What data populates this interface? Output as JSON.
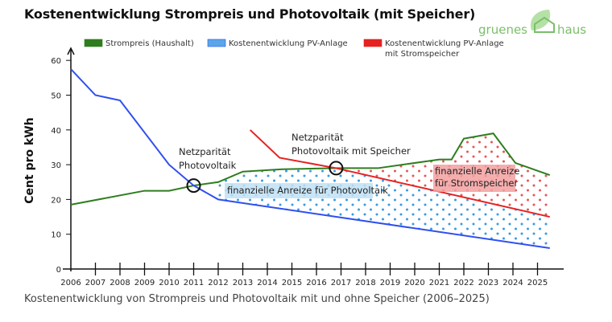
{
  "chart_data": {
    "type": "line",
    "title": "Kostenentwicklung Strompreis und Photovoltaik (mit Speicher)",
    "caption": "Kostenentwicklung von Strompreis und Photovoltaik mit und ohne Speicher (2006–2025)",
    "ylabel": "Cent pro kWh",
    "xlabel": "",
    "ylim": [
      0,
      60
    ],
    "yticks": [
      0,
      10,
      20,
      30,
      40,
      50,
      60
    ],
    "xticks": [
      2006,
      2007,
      2008,
      2009,
      2010,
      2011,
      2012,
      2013,
      2014,
      2015,
      2016,
      2017,
      2018,
      2019,
      2020,
      2021,
      2022,
      2023,
      2024,
      2025
    ],
    "legend_position": "top",
    "grid": false,
    "series": [
      {
        "name": "Strompreis (Haushalt)",
        "color": "#2e7d1e",
        "x": [
          2006,
          2009,
          2010,
          2011,
          2012,
          2013,
          2014.6,
          2016.8,
          2018.5,
          2021,
          2021.5,
          2022,
          2023.2,
          2024.1,
          2025.5
        ],
        "y": [
          18.5,
          22.5,
          22.5,
          24,
          25,
          28,
          28.7,
          29,
          29,
          31.5,
          31.5,
          37.5,
          39,
          30.5,
          27
        ]
      },
      {
        "name": "Kostenentwicklung PV-Anlage",
        "color": "#2f4ff0",
        "legend_color": "#5aa6e8",
        "x": [
          2006,
          2007,
          2008,
          2010,
          2011,
          2012,
          2025.5
        ],
        "y": [
          57.5,
          50,
          48.5,
          30,
          24,
          20,
          6
        ]
      },
      {
        "name": "Kostenentwicklung PV-Anlage mit Stromspeicher",
        "color": "#e52222",
        "x": [
          2013.3,
          2014.5,
          2016.8,
          2025.5
        ],
        "y": [
          40,
          32,
          29,
          15
        ]
      }
    ],
    "annotations": [
      {
        "text": [
          "Netzparität",
          "Photovoltaik"
        ],
        "x": 2011,
        "y": 24
      },
      {
        "text": [
          "Netzparität",
          "Photovoltaik mit Speicher"
        ],
        "x": 2016.8,
        "y": 29
      },
      {
        "text": [
          "finanzielle Anreize für Photovoltaik"
        ],
        "color": "#bfe0f5"
      },
      {
        "text": [
          "finanzielle Anreize",
          "für Stromspeicher"
        ],
        "color": "#f2a0a0"
      }
    ]
  },
  "logo": {
    "text_left": "gruenes",
    "text_right": "haus",
    "color": "#7bbf6a"
  }
}
